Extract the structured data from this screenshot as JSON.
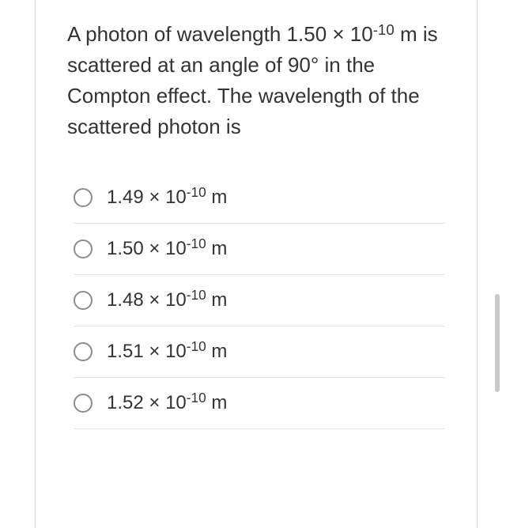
{
  "question": {
    "parts": [
      {
        "text": "A photon of wavelength 1.50 × 10"
      },
      {
        "sup": "-10"
      },
      {
        "text": " m is scattered at an angle of 90° in the Compton effect. The wavelength of the scattered photon is"
      }
    ],
    "font_size": 26,
    "text_color": "#333333"
  },
  "options": [
    {
      "parts": [
        {
          "text": "1.49 × 10"
        },
        {
          "sup": "-10"
        },
        {
          "text": " m"
        }
      ],
      "selected": false
    },
    {
      "parts": [
        {
          "text": "1.50 × 10"
        },
        {
          "sup": "-10"
        },
        {
          "text": " m"
        }
      ],
      "selected": false
    },
    {
      "parts": [
        {
          "text": "1.48 × 10"
        },
        {
          "sup": "-10"
        },
        {
          "text": " m"
        }
      ],
      "selected": false
    },
    {
      "parts": [
        {
          "text": "1.51 × 10"
        },
        {
          "sup": "-10"
        },
        {
          "text": " m"
        }
      ],
      "selected": false
    },
    {
      "parts": [
        {
          "text": "1.52 × 10"
        },
        {
          "sup": "-10"
        },
        {
          "text": " m"
        }
      ],
      "selected": false
    }
  ],
  "styles": {
    "card_border_color": "#d6d6d6",
    "option_divider_color": "#e3e3e3",
    "radio_border_color": "#8c8c8c",
    "scroll_indicator_color": "#c9c9c9",
    "option_font_size": 24
  }
}
